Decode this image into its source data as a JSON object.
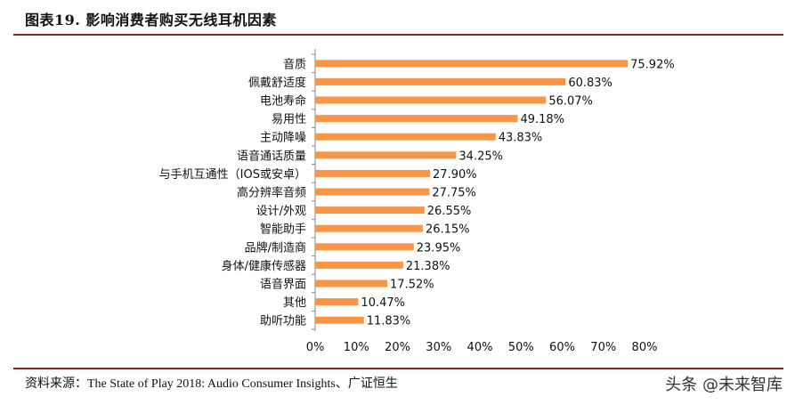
{
  "header": {
    "title": "图表19.  影响消费者购买无线耳机因素"
  },
  "footer": {
    "source": "资料来源：The State of Play 2018: Audio Consumer Insights、广证恒生",
    "watermark": "头条 @未来智库"
  },
  "colors": {
    "bar": "#F79646",
    "rule": "#8B2323",
    "text": "#111111"
  },
  "chart_data": {
    "type": "bar",
    "orientation": "horizontal",
    "title": "",
    "xlabel": "",
    "ylabel": "",
    "xlim": [
      0,
      80
    ],
    "ticks": [
      "0%",
      "10%",
      "20%",
      "30%",
      "40%",
      "50%",
      "60%",
      "70%",
      "80%"
    ],
    "tick_values": [
      0,
      10,
      20,
      30,
      40,
      50,
      60,
      70,
      80
    ],
    "categories": [
      "音质",
      "佩戴舒适度",
      "电池寿命",
      "易用性",
      "主动降噪",
      "语音通话质量",
      "与手机互通性（IOS或安卓）",
      "高分辨率音频",
      "设计/外观",
      "智能助手",
      "品牌/制造商",
      "身体/健康传感器",
      "语音界面",
      "其他",
      "助听功能"
    ],
    "values": [
      75.92,
      60.83,
      56.07,
      49.18,
      43.83,
      34.25,
      27.9,
      27.75,
      26.55,
      26.15,
      23.95,
      21.38,
      17.52,
      10.47,
      11.83
    ],
    "value_labels": [
      "75.92%",
      "60.83%",
      "56.07%",
      "49.18%",
      "43.83%",
      "34.25%",
      "27.90%",
      "27.75%",
      "26.55%",
      "26.15%",
      "23.95%",
      "21.38%",
      "17.52%",
      "10.47%",
      "11.83%"
    ],
    "grid": false,
    "legend": "none"
  }
}
